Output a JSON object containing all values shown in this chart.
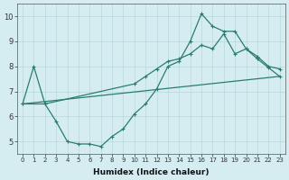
{
  "line1_x": [
    0,
    1,
    2,
    3,
    4,
    5,
    6,
    7,
    8,
    9,
    10,
    11,
    12,
    13,
    14,
    15,
    16,
    17,
    18,
    19,
    20,
    21,
    22,
    23
  ],
  "line1_y": [
    6.5,
    8.0,
    6.5,
    5.8,
    5.0,
    4.9,
    4.9,
    4.8,
    5.2,
    5.5,
    6.1,
    6.5,
    7.1,
    8.0,
    8.2,
    9.0,
    10.1,
    9.6,
    9.4,
    9.4,
    8.7,
    8.4,
    8.0,
    7.9
  ],
  "line2_x": [
    0,
    2,
    10,
    11,
    12,
    13,
    14,
    15,
    16,
    17,
    18,
    19,
    20,
    21,
    22,
    23
  ],
  "line2_y": [
    6.5,
    6.5,
    7.3,
    7.6,
    7.9,
    8.2,
    8.3,
    8.5,
    8.85,
    8.7,
    9.3,
    8.5,
    8.7,
    8.3,
    7.95,
    7.6
  ],
  "line3_x": [
    0,
    23
  ],
  "line3_y": [
    6.5,
    7.6
  ],
  "color": "#2a7d6e",
  "bg_color": "#d5edf0",
  "grid_color": "#b8d8db",
  "xlabel": "Humidex (Indice chaleur)",
  "xlim": [
    -0.5,
    23.5
  ],
  "ylim": [
    4.5,
    10.5
  ],
  "yticks": [
    5,
    6,
    7,
    8,
    9,
    10
  ],
  "xticks": [
    0,
    1,
    2,
    3,
    4,
    5,
    6,
    7,
    8,
    9,
    10,
    11,
    12,
    13,
    14,
    15,
    16,
    17,
    18,
    19,
    20,
    21,
    22,
    23
  ],
  "marker": "+"
}
